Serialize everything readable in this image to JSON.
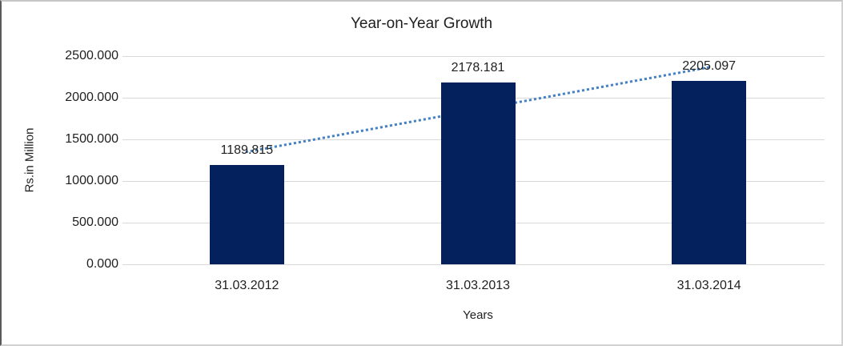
{
  "chart_data": {
    "type": "bar",
    "title": "Year-on-Year Growth",
    "xlabel": "Years",
    "ylabel": "Rs.in Million",
    "categories": [
      "31.03.2012",
      "31.03.2013",
      "31.03.2014"
    ],
    "values": [
      1189.815,
      2178.181,
      2205.097
    ],
    "data_labels": [
      "1189.815",
      "2178.181",
      "2205.097"
    ],
    "ylim": [
      0,
      2500
    ],
    "ytick_labels": [
      "0.000",
      "500.000",
      "1000.000",
      "1500.000",
      "2000.000",
      "2500.000"
    ],
    "ytick_values": [
      0,
      500,
      1000,
      1500,
      2000,
      2500
    ],
    "grid": true,
    "legend_position": "none",
    "bar_color": "#04215d",
    "gridline_color": "#d9d9d9",
    "trendline": {
      "type": "linear",
      "style": "dotted",
      "color": "#4682c3"
    }
  }
}
